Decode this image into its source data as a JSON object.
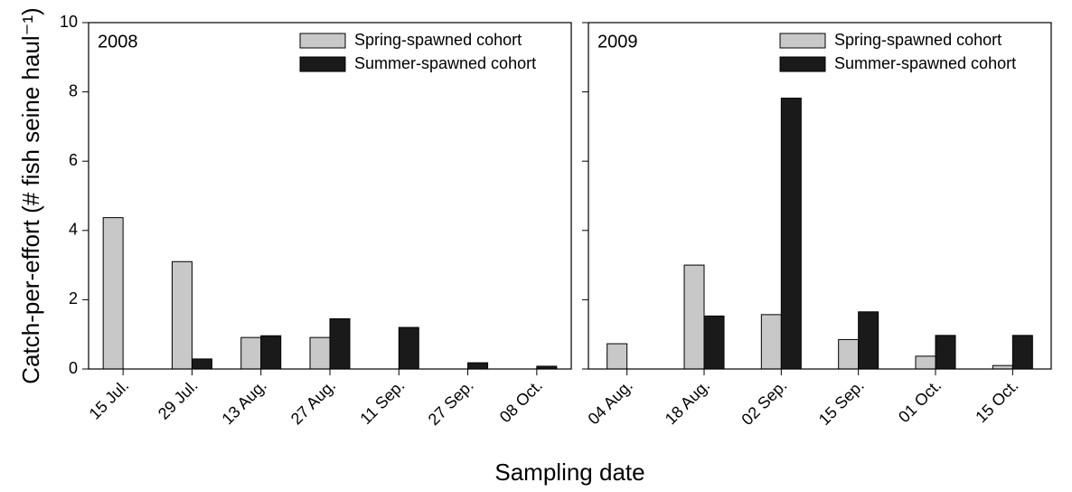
{
  "chart_data": [
    {
      "type": "bar",
      "title": "2008",
      "ylabel": "Catch-per-effort (# fish seine haul⁻¹)",
      "xlabel": "Sampling date",
      "categories": [
        "15 Jul.",
        "29 Jul.",
        "13 Aug.",
        "27 Aug.",
        "11 Sep.",
        "27 Sep.",
        "08 Oct."
      ],
      "series": [
        {
          "name": "Spring-spawned cohort",
          "color": "#c8c8c8",
          "values": [
            4.37,
            3.1,
            0.91,
            0.91,
            0,
            0,
            0
          ]
        },
        {
          "name": "Summer-spawned cohort",
          "color": "#1a1a1a",
          "values": [
            0,
            0.29,
            0.96,
            1.45,
            1.2,
            0.18,
            0.08
          ]
        }
      ],
      "ylim": [
        0,
        10
      ],
      "yticks": [
        0,
        2,
        4,
        6,
        8,
        10
      ],
      "legend": "upper right"
    },
    {
      "type": "bar",
      "title": "2009",
      "categories": [
        "04 Aug.",
        "18 Aug.",
        "02 Sep.",
        "15 Sep.",
        "01 Oct.",
        "15 Oct."
      ],
      "series": [
        {
          "name": "Spring-spawned cohort",
          "color": "#c8c8c8",
          "values": [
            0.73,
            3.0,
            1.57,
            0.85,
            0.37,
            0.1
          ]
        },
        {
          "name": "Summer-spawned cohort",
          "color": "#1a1a1a",
          "values": [
            0,
            1.53,
            7.82,
            1.65,
            0.97,
            0.97
          ]
        }
      ],
      "ylim": [
        0,
        10
      ],
      "yticks": [
        0,
        2,
        4,
        6,
        8,
        10
      ],
      "legend": "upper right"
    }
  ]
}
